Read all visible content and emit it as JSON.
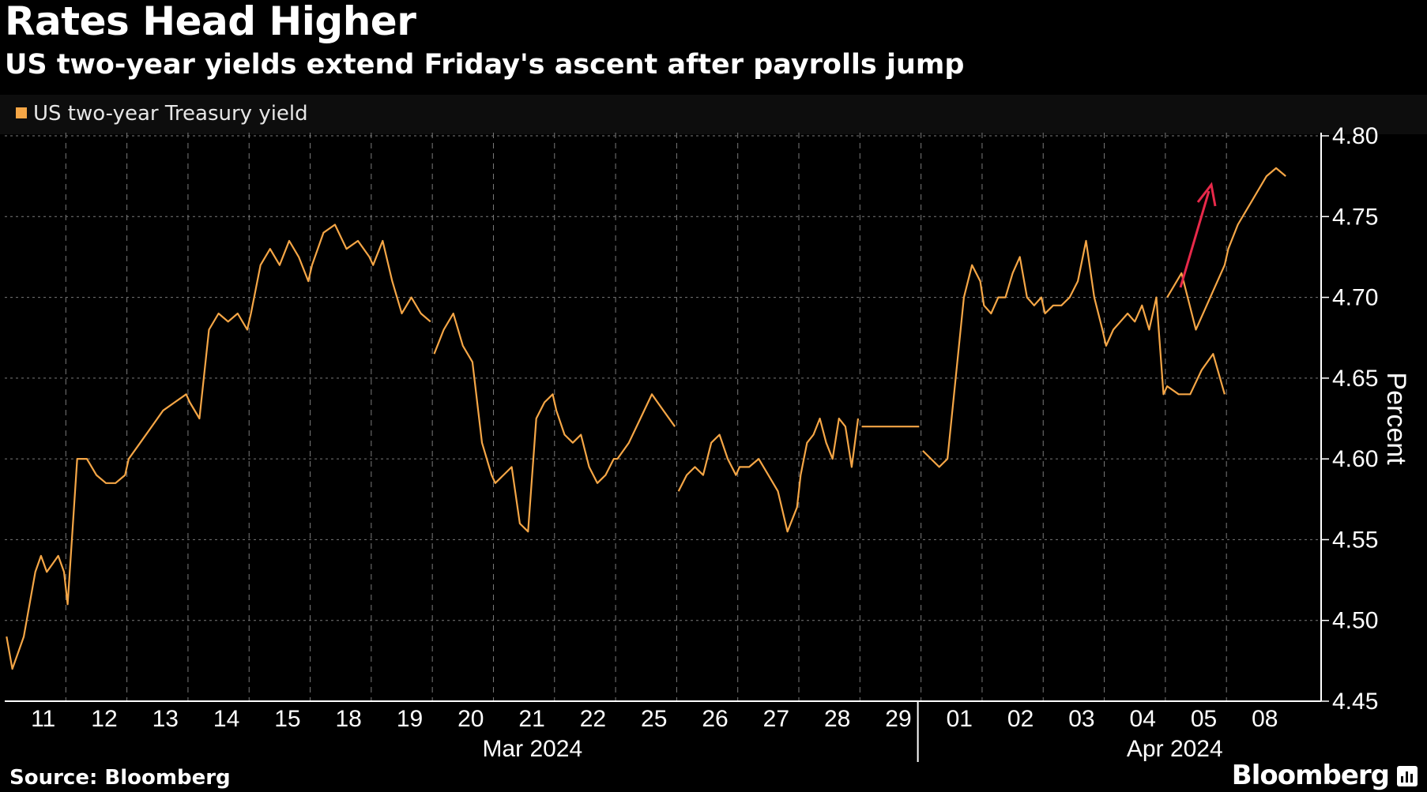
{
  "header": {
    "title": "Rates Head Higher",
    "subtitle": "US two-year yields extend Friday's ascent after payrolls jump"
  },
  "footer": {
    "source": "Source: Bloomberg",
    "brand": "Bloomberg"
  },
  "colors": {
    "series": "#f5a646",
    "arrow": "#e8294a",
    "grid": "#7a7a7a",
    "axis": "#ffffff"
  },
  "chart_data": {
    "type": "line",
    "title": "Rates Head Higher",
    "subtitle": "US two-year yields extend Friday's ascent after payrolls jump",
    "ylabel": "Percent",
    "ylim": [
      4.45,
      4.8
    ],
    "yticks": [
      "4.45",
      "4.50",
      "4.55",
      "4.60",
      "4.65",
      "4.70",
      "4.75",
      "4.80"
    ],
    "y_axis_position": "right",
    "grid": true,
    "legend": "top-left",
    "x_day_labels": [
      "11",
      "12",
      "13",
      "14",
      "15",
      "18",
      "19",
      "20",
      "21",
      "22",
      "25",
      "26",
      "27",
      "28",
      "29",
      "01",
      "02",
      "03",
      "04",
      "05",
      "08"
    ],
    "x_month_labels": [
      "Mar 2024",
      "Apr 2024"
    ],
    "annotation": "upward arrow near 05-08",
    "series": [
      {
        "name": "US two-year Treasury yield",
        "segments": [
          [
            [
              "2024-03-11",
              4.49
            ],
            [
              "2024-03-11",
              4.47
            ],
            [
              "2024-03-11",
              4.48
            ],
            [
              "2024-03-11",
              4.49
            ],
            [
              "2024-03-11",
              4.51
            ],
            [
              "2024-03-11",
              4.53
            ],
            [
              "2024-03-11",
              4.54
            ],
            [
              "2024-03-11",
              4.53
            ],
            [
              "2024-03-11",
              4.535
            ],
            [
              "2024-03-11",
              4.54
            ],
            [
              "2024-03-11",
              4.53
            ],
            [
              "2024-03-12",
              4.51
            ],
            [
              "2024-03-12",
              4.6
            ],
            [
              "2024-03-12",
              4.6
            ],
            [
              "2024-03-12",
              4.59
            ],
            [
              "2024-03-12",
              4.585
            ],
            [
              "2024-03-12",
              4.585
            ],
            [
              "2024-03-12",
              4.59
            ],
            [
              "2024-03-13",
              4.6
            ],
            [
              "2024-03-13",
              4.61
            ],
            [
              "2024-03-13",
              4.62
            ],
            [
              "2024-03-13",
              4.63
            ],
            [
              "2024-03-13",
              4.635
            ],
            [
              "2024-03-13",
              4.64
            ],
            [
              "2024-03-14",
              4.635
            ],
            [
              "2024-03-14",
              4.625
            ],
            [
              "2024-03-14",
              4.68
            ],
            [
              "2024-03-14",
              4.69
            ],
            [
              "2024-03-14",
              4.685
            ],
            [
              "2024-03-14",
              4.69
            ],
            [
              "2024-03-14",
              4.68
            ],
            [
              "2024-03-15",
              4.69
            ],
            [
              "2024-03-15",
              4.72
            ],
            [
              "2024-03-15",
              4.73
            ],
            [
              "2024-03-15",
              4.72
            ],
            [
              "2024-03-15",
              4.735
            ],
            [
              "2024-03-15",
              4.725
            ],
            [
              "2024-03-15",
              4.71
            ],
            [
              "2024-03-18",
              4.72
            ],
            [
              "2024-03-18",
              4.74
            ],
            [
              "2024-03-18",
              4.745
            ],
            [
              "2024-03-18",
              4.73
            ],
            [
              "2024-03-18",
              4.735
            ],
            [
              "2024-03-18",
              4.725
            ],
            [
              "2024-03-19",
              4.72
            ],
            [
              "2024-03-19",
              4.735
            ],
            [
              "2024-03-19",
              4.71
            ],
            [
              "2024-03-19",
              4.69
            ],
            [
              "2024-03-19",
              4.7
            ],
            [
              "2024-03-19",
              4.69
            ],
            [
              "2024-03-19",
              4.685
            ]
          ],
          [
            [
              "2024-03-20",
              4.665
            ],
            [
              "2024-03-20",
              4.68
            ],
            [
              "2024-03-20",
              4.69
            ],
            [
              "2024-03-20",
              4.67
            ],
            [
              "2024-03-20",
              4.66
            ],
            [
              "2024-03-20",
              4.61
            ],
            [
              "2024-03-20",
              4.59
            ],
            [
              "2024-03-21",
              4.585
            ],
            [
              "2024-03-21",
              4.59
            ],
            [
              "2024-03-21",
              4.595
            ],
            [
              "2024-03-21",
              4.56
            ],
            [
              "2024-03-21",
              4.555
            ],
            [
              "2024-03-21",
              4.625
            ],
            [
              "2024-03-21",
              4.635
            ],
            [
              "2024-03-21",
              4.64
            ],
            [
              "2024-03-22",
              4.63
            ],
            [
              "2024-03-22",
              4.615
            ],
            [
              "2024-03-22",
              4.61
            ],
            [
              "2024-03-22",
              4.615
            ],
            [
              "2024-03-22",
              4.595
            ],
            [
              "2024-03-22",
              4.585
            ],
            [
              "2024-03-22",
              4.59
            ],
            [
              "2024-03-22",
              4.6
            ],
            [
              "2024-03-25",
              4.6
            ],
            [
              "2024-03-25",
              4.61
            ],
            [
              "2024-03-25",
              4.625
            ],
            [
              "2024-03-25",
              4.64
            ],
            [
              "2024-03-25",
              4.63
            ],
            [
              "2024-03-25",
              4.62
            ]
          ],
          [
            [
              "2024-03-26",
              4.58
            ],
            [
              "2024-03-26",
              4.59
            ],
            [
              "2024-03-26",
              4.595
            ],
            [
              "2024-03-26",
              4.59
            ],
            [
              "2024-03-26",
              4.61
            ],
            [
              "2024-03-26",
              4.615
            ],
            [
              "2024-03-26",
              4.6
            ],
            [
              "2024-03-26",
              4.59
            ],
            [
              "2024-03-27",
              4.595
            ],
            [
              "2024-03-27",
              4.595
            ],
            [
              "2024-03-27",
              4.6
            ],
            [
              "2024-03-27",
              4.59
            ],
            [
              "2024-03-27",
              4.58
            ],
            [
              "2024-03-27",
              4.555
            ],
            [
              "2024-03-27",
              4.57
            ],
            [
              "2024-03-28",
              4.59
            ],
            [
              "2024-03-28",
              4.61
            ],
            [
              "2024-03-28",
              4.615
            ],
            [
              "2024-03-28",
              4.625
            ],
            [
              "2024-03-28",
              4.61
            ],
            [
              "2024-03-28",
              4.6
            ],
            [
              "2024-03-28",
              4.625
            ],
            [
              "2024-03-28",
              4.62
            ],
            [
              "2024-03-28",
              4.595
            ],
            [
              "2024-03-28",
              4.625
            ]
          ],
          [
            [
              "2024-03-29",
              4.62
            ],
            [
              "2024-03-29",
              4.62
            ]
          ],
          [
            [
              "2024-04-01",
              4.605
            ],
            [
              "2024-04-01",
              4.6
            ],
            [
              "2024-04-01",
              4.595
            ],
            [
              "2024-04-01",
              4.6
            ],
            [
              "2024-04-01",
              4.65
            ],
            [
              "2024-04-01",
              4.7
            ],
            [
              "2024-04-01",
              4.72
            ],
            [
              "2024-04-01",
              4.71
            ],
            [
              "2024-04-02",
              4.695
            ],
            [
              "2024-04-02",
              4.69
            ],
            [
              "2024-04-02",
              4.7
            ],
            [
              "2024-04-02",
              4.7
            ],
            [
              "2024-04-02",
              4.715
            ],
            [
              "2024-04-02",
              4.725
            ],
            [
              "2024-04-02",
              4.7
            ],
            [
              "2024-04-02",
              4.695
            ],
            [
              "2024-04-02",
              4.7
            ],
            [
              "2024-04-03",
              4.69
            ],
            [
              "2024-04-03",
              4.695
            ],
            [
              "2024-04-03",
              4.695
            ],
            [
              "2024-04-03",
              4.7
            ],
            [
              "2024-04-03",
              4.71
            ],
            [
              "2024-04-03",
              4.735
            ],
            [
              "2024-04-03",
              4.7
            ],
            [
              "2024-04-03",
              4.68
            ],
            [
              "2024-04-04",
              4.67
            ],
            [
              "2024-04-04",
              4.68
            ],
            [
              "2024-04-04",
              4.685
            ],
            [
              "2024-04-04",
              4.69
            ],
            [
              "2024-04-04",
              4.685
            ],
            [
              "2024-04-04",
              4.695
            ],
            [
              "2024-04-04",
              4.68
            ],
            [
              "2024-04-04",
              4.7
            ],
            [
              "2024-04-04",
              4.64
            ],
            [
              "2024-04-05",
              4.645
            ],
            [
              "2024-04-05",
              4.64
            ],
            [
              "2024-04-05",
              4.64
            ],
            [
              "2024-04-05",
              4.655
            ],
            [
              "2024-04-05",
              4.665
            ],
            [
              "2024-04-05",
              4.64
            ]
          ],
          [
            [
              "2024-04-05",
              4.7
            ],
            [
              "2024-04-05",
              4.715
            ],
            [
              "2024-04-05",
              4.68
            ],
            [
              "2024-04-05",
              4.7
            ],
            [
              "2024-04-05",
              4.72
            ],
            [
              "2024-04-08",
              4.73
            ],
            [
              "2024-04-08",
              4.745
            ],
            [
              "2024-04-08",
              4.755
            ],
            [
              "2024-04-08",
              4.765
            ],
            [
              "2024-04-08",
              4.775
            ],
            [
              "2024-04-08",
              4.78
            ],
            [
              "2024-04-08",
              4.775
            ]
          ]
        ]
      }
    ]
  }
}
